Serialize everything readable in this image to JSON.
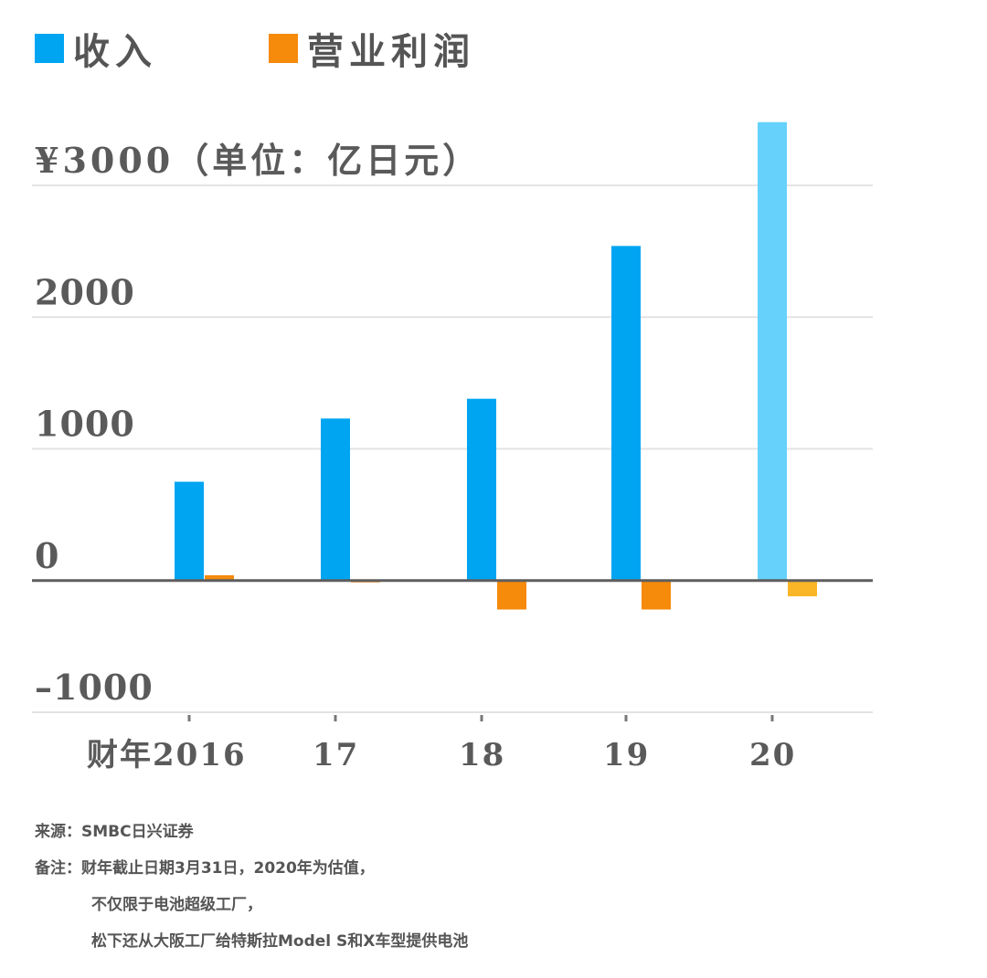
{
  "legend": {
    "revenue_label": "收入",
    "profit_label": "营业利润",
    "revenue_color": "#00a5f2",
    "profit_color": "#f58a0b"
  },
  "chart_data": {
    "type": "bar",
    "categories": [
      "财年2016",
      "17",
      "18",
      "19",
      "20"
    ],
    "series": [
      {
        "name": "收入",
        "values": [
          750,
          1230,
          1380,
          2540,
          3480
        ],
        "color": "#00a5f2",
        "estimate_color": "#66d1fb"
      },
      {
        "name": "营业利润",
        "values": [
          40,
          -10,
          -220,
          -220,
          -120
        ],
        "color": "#f58a0b",
        "estimate_color": "#fbb628"
      }
    ],
    "estimated_category": "20",
    "ylim": [
      -1000,
      3000
    ],
    "yticks": [
      3000,
      2000,
      1000,
      0,
      -1000
    ],
    "ytick_labels": [
      "¥3000（单位：亿日元）",
      "2000",
      "1000",
      "0",
      "–1000"
    ],
    "grid": true
  },
  "notes": {
    "source": "来源：SMBC日兴证券",
    "note_line1": "备注：财年截止日期3月31日，2020年为估值，",
    "note_line2": "不仅限于电池超级工厂，",
    "note_line3": "松下还从大阪工厂给特斯拉Model S和X车型提供电池"
  }
}
